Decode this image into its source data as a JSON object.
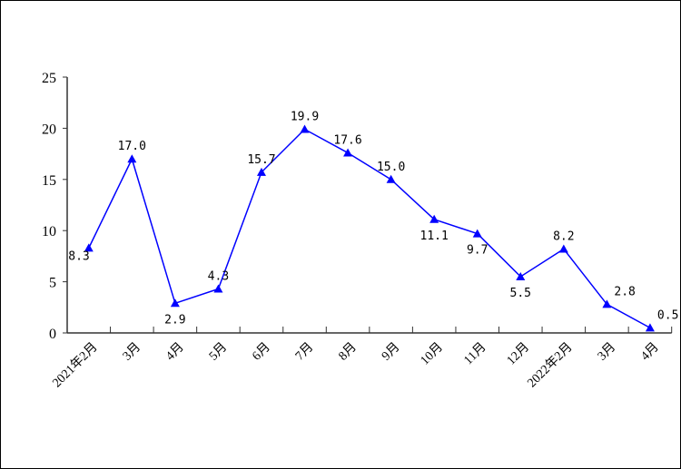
{
  "chart_data": {
    "type": "line",
    "title": "",
    "xlabel": "",
    "ylabel": "",
    "categories": [
      "2021年2月",
      "3月",
      "4月",
      "5月",
      "6月",
      "7月",
      "8月",
      "9月",
      "10月",
      "11月",
      "12月",
      "2022年2月",
      "3月",
      "4月"
    ],
    "series": [
      {
        "name": "",
        "values": [
          8.3,
          17.0,
          2.9,
          4.3,
          15.7,
          19.9,
          17.6,
          15.0,
          11.1,
          9.7,
          5.5,
          8.2,
          2.8,
          0.5
        ],
        "color": "#0000FF",
        "marker": "triangle"
      }
    ],
    "data_labels": [
      "8.3",
      "17.0",
      "2.9",
      "4.3",
      "15.7",
      "19.9",
      "17.6",
      "15.0",
      "11.1",
      "9.7",
      "5.5",
      "8.2",
      "2.8",
      "0.5"
    ],
    "ylim": [
      0,
      25
    ],
    "yticks": [
      0,
      5,
      10,
      15,
      20,
      25
    ],
    "ytick_labels": [
      "0",
      "5",
      "10",
      "15",
      "20",
      "25"
    ],
    "grid": false,
    "legend": "none"
  }
}
